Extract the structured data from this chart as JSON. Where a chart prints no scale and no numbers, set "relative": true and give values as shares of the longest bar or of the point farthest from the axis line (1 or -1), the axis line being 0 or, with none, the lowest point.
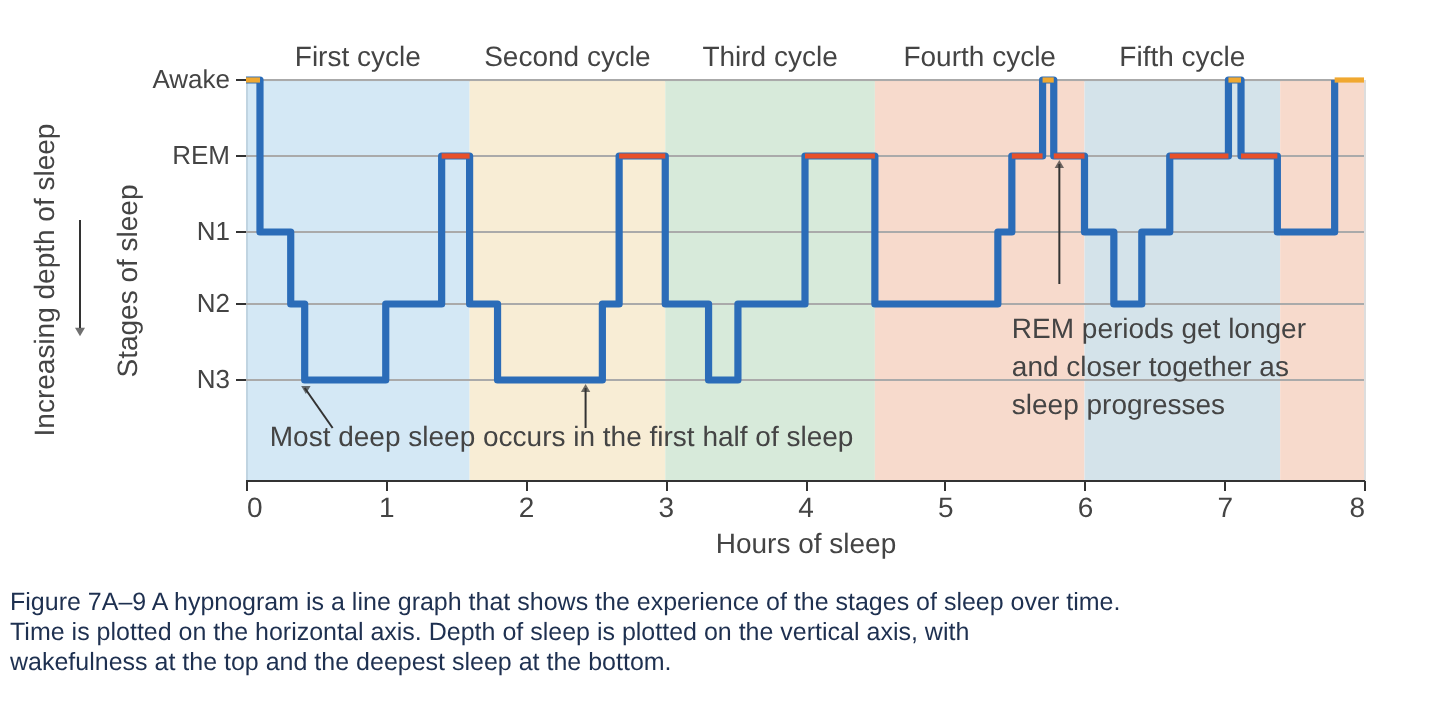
{
  "chart_data": {
    "type": "step",
    "xlabel": "Hours of sleep",
    "ylabel": "Stages of sleep",
    "x": [
      0,
      0.1,
      0.32,
      0.42,
      1.0,
      1.4,
      1.6,
      1.8,
      2.55,
      2.67,
      3.0,
      3.31,
      3.52,
      4.0,
      4.5,
      5.38,
      5.48,
      5.7,
      5.78,
      6.0,
      6.21,
      6.41,
      6.61,
      7.03,
      7.12,
      7.38,
      7.79
    ],
    "series": [
      {
        "color": "#2b6cb8",
        "values": [
          1,
          0.62,
          0.44,
          0.25,
          0.44,
          0.81,
          0.44,
          0.25,
          0.44,
          0.81,
          0.44,
          0.25,
          0.44,
          0.81,
          0.44,
          0.62,
          0.81,
          1,
          0.81,
          0.62,
          0.44,
          0.62,
          0.81,
          1,
          0.81,
          0.62,
          1
        ]
      },
      {
        "type": "line",
        "color": "#e8502a",
        "x": [
          1.4,
          1.6
        ],
        "values": [
          0.81,
          0.81
        ]
      },
      {
        "type": "line",
        "color": "#e8502a",
        "x": [
          2.67,
          3.0
        ],
        "values": [
          0.81,
          0.81
        ]
      },
      {
        "type": "line",
        "color": "#e8502a",
        "x": [
          4.0,
          4.5
        ],
        "values": [
          0.81,
          0.81
        ]
      },
      {
        "type": "line",
        "color": "#e8502a",
        "x": [
          5.48,
          5.7
        ],
        "values": [
          0.81,
          0.81
        ]
      },
      {
        "type": "line",
        "color": "#e8502a",
        "x": [
          5.78,
          6.0
        ],
        "values": [
          0.81,
          0.81
        ]
      },
      {
        "type": "line",
        "color": "#e8502a",
        "x": [
          6.61,
          7.03
        ],
        "values": [
          0.81,
          0.81
        ]
      },
      {
        "type": "line",
        "color": "#e8502a",
        "x": [
          7.12,
          7.38
        ],
        "values": [
          0.81,
          0.81
        ]
      },
      {
        "type": "line",
        "color": "#f0a830",
        "x": [
          0,
          0.1
        ],
        "values": [
          1,
          1
        ]
      },
      {
        "type": "line",
        "color": "#f0a830",
        "x": [
          5.7,
          5.78
        ],
        "values": [
          1,
          1
        ]
      },
      {
        "type": "line",
        "color": "#f0a830",
        "x": [
          7.03,
          7.12
        ],
        "values": [
          1,
          1
        ]
      },
      {
        "type": "line",
        "color": "#f0a830",
        "x": [
          7.79,
          8.0
        ],
        "values": [
          1,
          1
        ]
      }
    ],
    "relative": true,
    "xlim": [
      0,
      8
    ],
    "xticks": [
      0,
      1,
      2,
      3,
      4,
      5,
      6,
      7,
      8
    ],
    "grid": "y",
    "bands": [
      {
        "axis": "x",
        "from": 0,
        "to": 1.6,
        "label": "First cycle",
        "color": "#cfe6f4"
      },
      {
        "axis": "x",
        "from": 1.6,
        "to": 3.0,
        "label": "Second cycle",
        "color": "#f7ebd0"
      },
      {
        "axis": "x",
        "from": 3.0,
        "to": 4.5,
        "label": "Third cycle",
        "color": "#d3e8d6"
      },
      {
        "axis": "x",
        "from": 4.5,
        "to": 6.0,
        "label": "Fourth cycle",
        "color": "#f6d6c6"
      },
      {
        "axis": "x",
        "from": 6.0,
        "to": 7.4,
        "label": "Fifth cycle",
        "color": "#cfe0e8"
      },
      {
        "axis": "x",
        "from": 7.4,
        "to": 8.0,
        "color": "#f6d6c6"
      }
    ],
    "annotations": [
      "Increasing depth of sleep",
      {
        "text": "Awake",
        "x": 0,
        "y": 1
      },
      {
        "text": "REM",
        "x": 0,
        "y": 0.81
      },
      {
        "text": "N1",
        "x": 0,
        "y": 0.62
      },
      {
        "text": "N2",
        "x": 0,
        "y": 0.44
      },
      {
        "text": "N3",
        "x": 0,
        "y": 0.25
      },
      {
        "text": "Most deep sleep occurs in the first half of sleep",
        "x": 0.72,
        "y": 0.25
      },
      {
        "text": "REM periods get longer and closer together as sleep progresses",
        "x": 5.82,
        "y": 0.81
      },
      "Figure 7A–9 A hypnogram is a line graph that shows the experience of the stages of sleep over time. Time is plotted on the horizontal axis. Depth of sleep is plotted on the vertical axis, with wakefulness at the top and the deepest sleep at the bottom."
    ]
  }
}
